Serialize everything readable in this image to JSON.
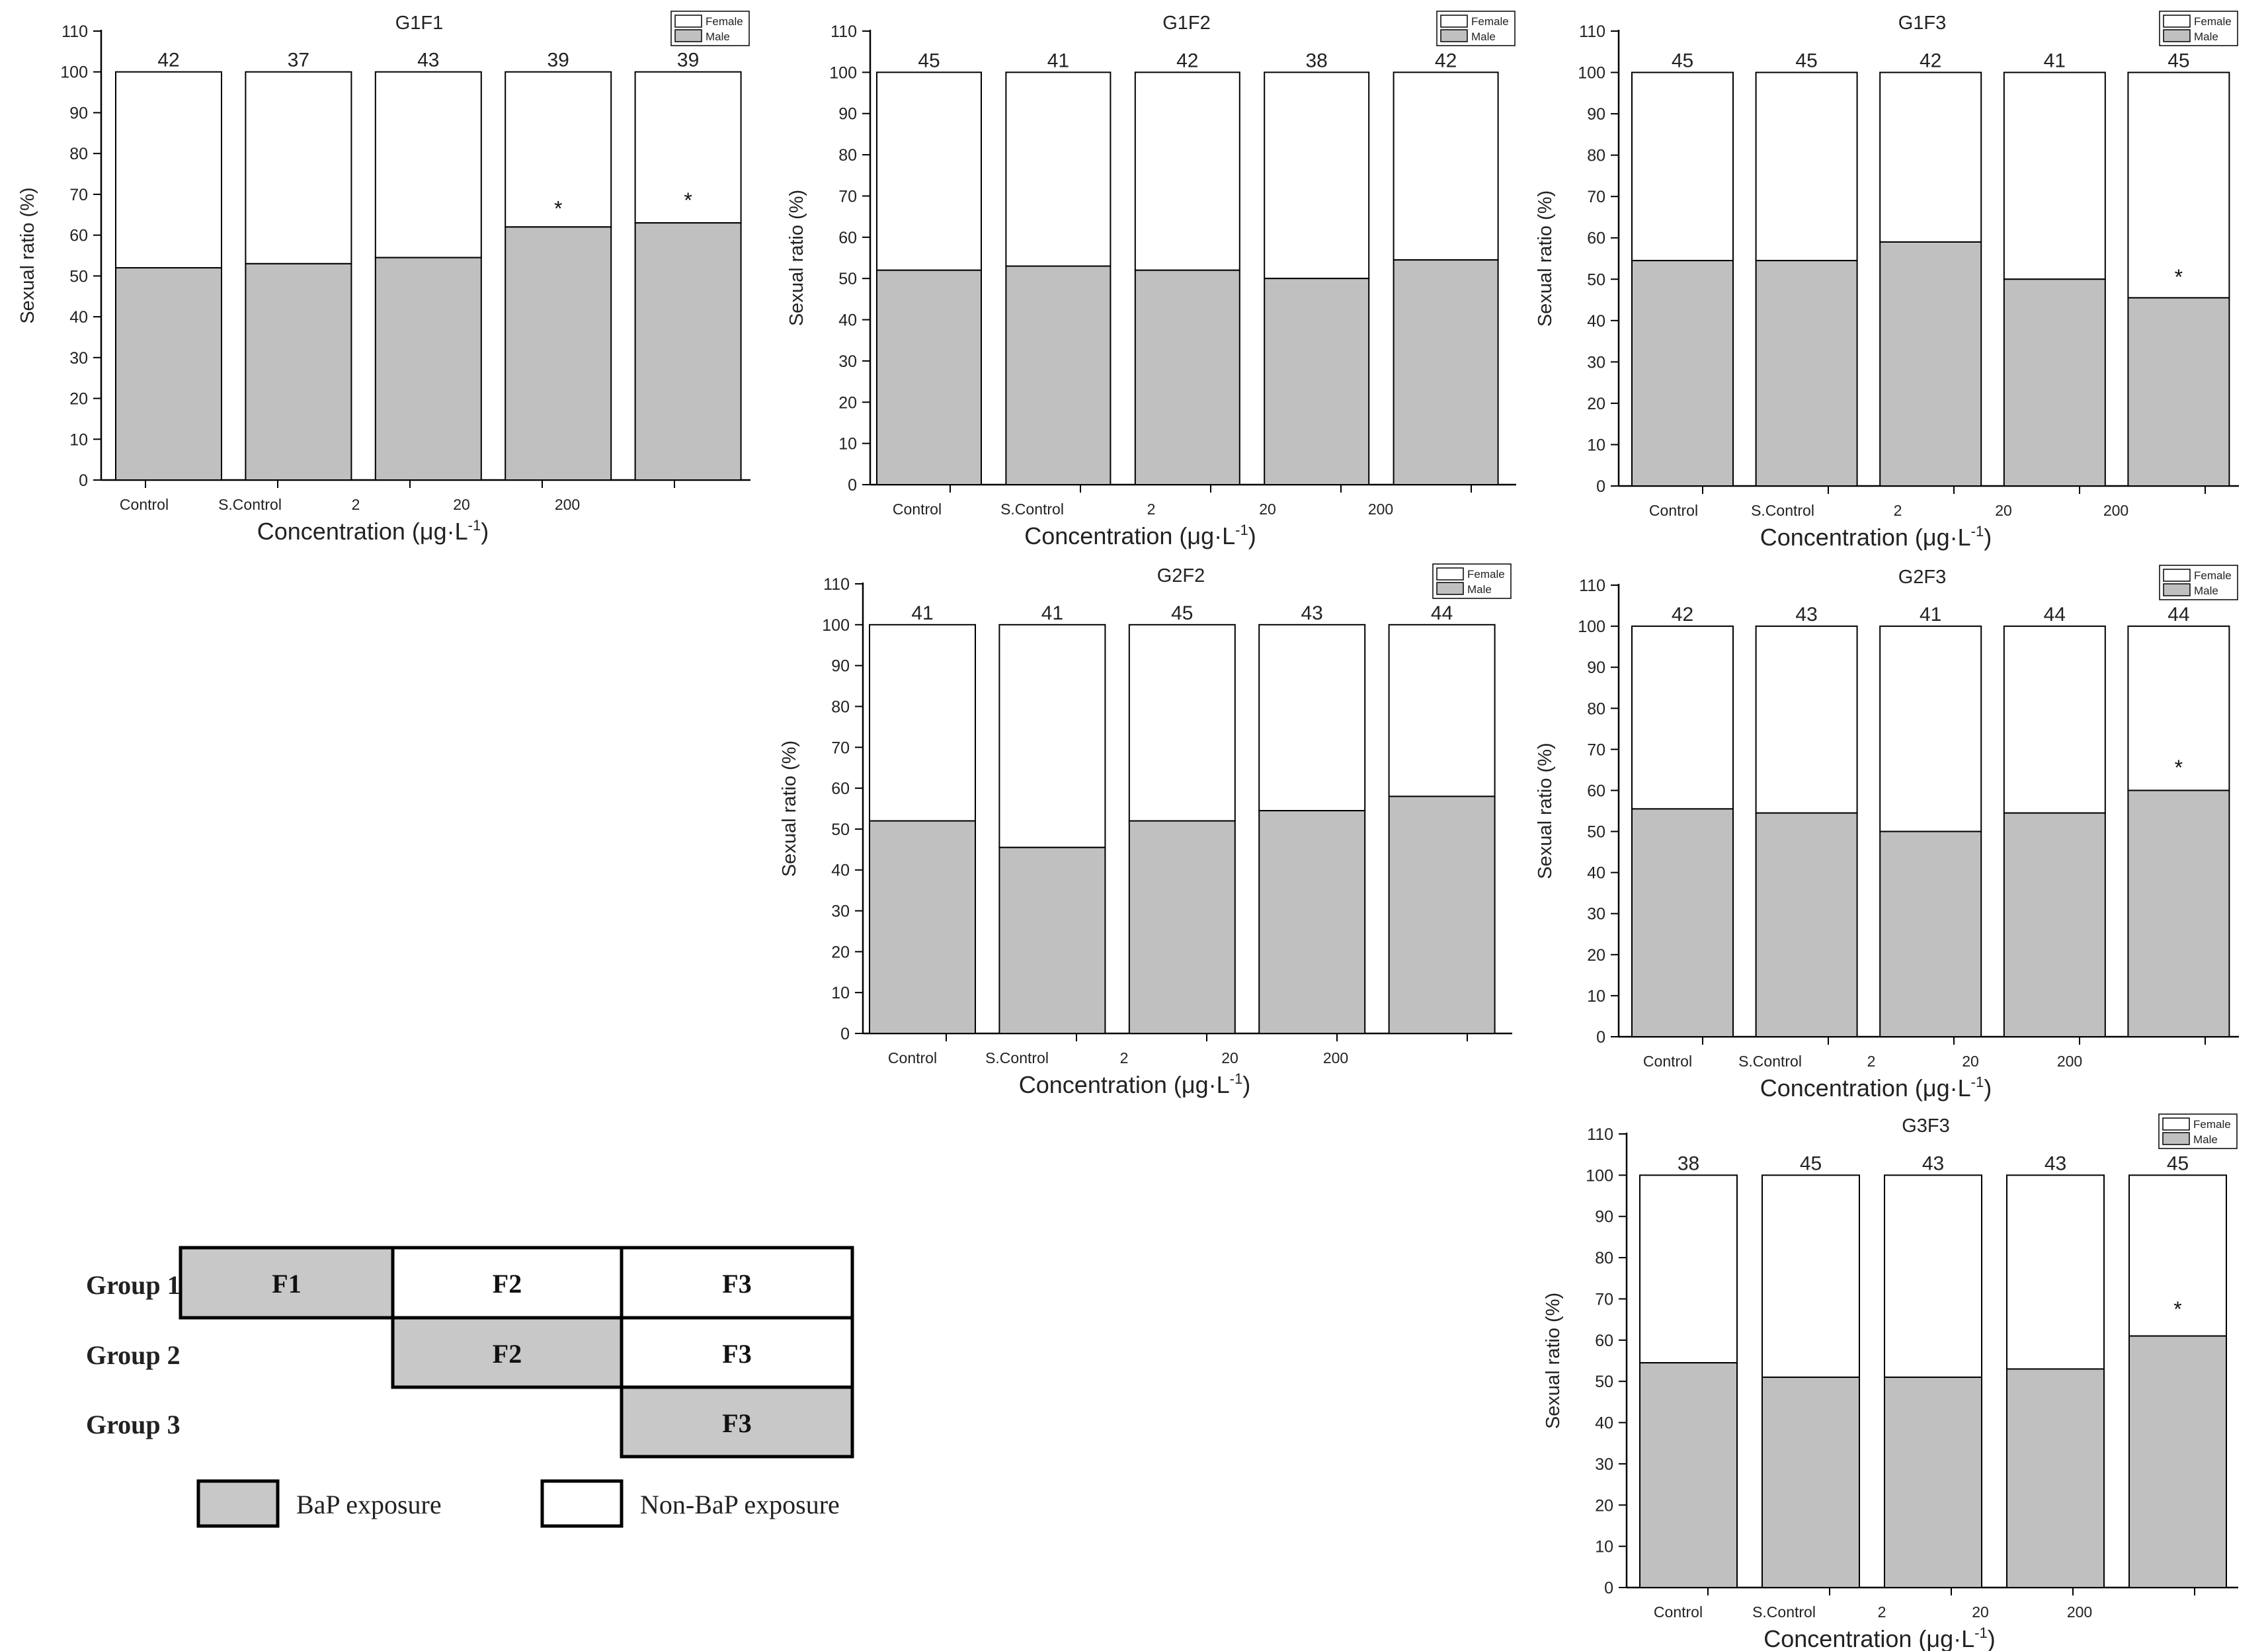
{
  "chart_data": [
    {
      "id": "G1F1",
      "type": "bar",
      "stacked": true,
      "title": "G1F1",
      "ylabel": "Sexual ratio (%)",
      "xlabel": "Concentration (μg·L⁻¹)",
      "xlabel_base": "Concentration (μg·L",
      "xlabel_sup": "-1",
      "xlabel_close": ")",
      "ylim": [
        0,
        110
      ],
      "yticks": [
        0,
        10,
        20,
        30,
        40,
        50,
        60,
        70,
        80,
        90,
        100,
        110
      ],
      "tick_labels": [
        "Control",
        "S.Control",
        "2",
        "20",
        "200"
      ],
      "legend": [
        "Female",
        "Male"
      ],
      "counts": [
        42,
        37,
        43,
        39,
        39
      ],
      "series": [
        {
          "name": "Male",
          "values": [
            52,
            53,
            54.5,
            62,
            63
          ],
          "color": "#c0c0c0"
        },
        {
          "name": "Female",
          "values": [
            48,
            47,
            45.5,
            38,
            37
          ],
          "color": "#ffffff"
        }
      ],
      "significant": [
        false,
        false,
        false,
        true,
        true
      ],
      "star_values": [
        null,
        null,
        null,
        67,
        69
      ]
    },
    {
      "id": "G1F2",
      "type": "bar",
      "stacked": true,
      "title": "G1F2",
      "ylabel": "Sexual ratio (%)",
      "xlabel": "Concentration (μg·L⁻¹)",
      "xlabel_base": "Concentration (μg·L",
      "xlabel_sup": "-1",
      "xlabel_close": ")",
      "ylim": [
        0,
        110
      ],
      "yticks": [
        0,
        10,
        20,
        30,
        40,
        50,
        60,
        70,
        80,
        90,
        100,
        110
      ],
      "tick_labels": [
        "Control",
        "S.Control",
        "2",
        "20",
        "200"
      ],
      "legend": [
        "Female",
        "Male"
      ],
      "counts": [
        45,
        41,
        42,
        38,
        42
      ],
      "series": [
        {
          "name": "Male",
          "values": [
            52,
            53,
            52,
            50,
            54.5
          ],
          "color": "#c0c0c0"
        },
        {
          "name": "Female",
          "values": [
            48,
            47,
            48,
            50,
            45.5
          ],
          "color": "#ffffff"
        }
      ],
      "significant": [
        false,
        false,
        false,
        false,
        false
      ],
      "star_values": [
        null,
        null,
        null,
        null,
        null
      ]
    },
    {
      "id": "G1F3",
      "type": "bar",
      "stacked": true,
      "title": "G1F3",
      "ylabel": "Sexual ratio (%)",
      "xlabel": "Concentration (μg·L⁻¹)",
      "xlabel_base": "Concentration (μg·L",
      "xlabel_sup": "-1",
      "xlabel_close": ")",
      "ylim": [
        0,
        110
      ],
      "yticks": [
        0,
        10,
        20,
        30,
        40,
        50,
        60,
        70,
        80,
        90,
        100,
        110
      ],
      "tick_labels": [
        "Control",
        "S.Control",
        "2",
        "20",
        "200"
      ],
      "legend": [
        "Female",
        "Male"
      ],
      "counts": [
        45,
        45,
        42,
        41,
        45
      ],
      "series": [
        {
          "name": "Male",
          "values": [
            54.5,
            54.5,
            59,
            50,
            45.5
          ],
          "color": "#c0c0c0"
        },
        {
          "name": "Female",
          "values": [
            45.5,
            45.5,
            41,
            50,
            54.5
          ],
          "color": "#ffffff"
        }
      ],
      "significant": [
        false,
        false,
        false,
        false,
        true
      ],
      "star_values": [
        null,
        null,
        null,
        null,
        51
      ]
    },
    {
      "id": "G2F2",
      "type": "bar",
      "stacked": true,
      "title": "G2F2",
      "ylabel": "Sexual ratio (%)",
      "xlabel": "Concentration (μg·L⁻¹)",
      "xlabel_base": "Concentration (μg·L",
      "xlabel_sup": "-1",
      "xlabel_close": ")",
      "ylim": [
        0,
        110
      ],
      "yticks": [
        0,
        10,
        20,
        30,
        40,
        50,
        60,
        70,
        80,
        90,
        100,
        110
      ],
      "tick_labels": [
        "Control",
        "S.Control",
        "2",
        "20",
        "200"
      ],
      "legend": [
        "Female",
        "Male"
      ],
      "counts": [
        41,
        41,
        45,
        43,
        44
      ],
      "series": [
        {
          "name": "Male",
          "values": [
            52,
            45.5,
            52,
            54.5,
            58
          ],
          "color": "#c0c0c0"
        },
        {
          "name": "Female",
          "values": [
            48,
            54.5,
            48,
            45.5,
            42
          ],
          "color": "#ffffff"
        }
      ],
      "significant": [
        false,
        false,
        false,
        false,
        false
      ],
      "star_values": [
        null,
        null,
        null,
        null,
        null
      ]
    },
    {
      "id": "G2F3",
      "type": "bar",
      "stacked": true,
      "title": "G2F3",
      "ylabel": "Sexual ratio (%)",
      "xlabel": "Concentration (μg·L⁻¹)",
      "xlabel_base": "Concentration (μg·L",
      "xlabel_sup": "-1",
      "xlabel_close": ")",
      "ylim": [
        0,
        110
      ],
      "yticks": [
        0,
        10,
        20,
        30,
        40,
        50,
        60,
        70,
        80,
        90,
        100,
        110
      ],
      "tick_labels": [
        "Control",
        "S.Control",
        "2",
        "20",
        "200"
      ],
      "legend": [
        "Female",
        "Male"
      ],
      "counts": [
        42,
        43,
        41,
        44,
        44
      ],
      "series": [
        {
          "name": "Male",
          "values": [
            55.5,
            54.5,
            50,
            54.5,
            60
          ],
          "color": "#c0c0c0"
        },
        {
          "name": "Female",
          "values": [
            44.5,
            45.5,
            50,
            45.5,
            40
          ],
          "color": "#ffffff"
        }
      ],
      "significant": [
        false,
        false,
        false,
        false,
        true
      ],
      "star_values": [
        null,
        null,
        null,
        null,
        66
      ]
    },
    {
      "id": "G3F3",
      "type": "bar",
      "stacked": true,
      "title": "G3F3",
      "ylabel": "Sexual ratio (%)",
      "xlabel": "Concentration (μg·L⁻¹)",
      "xlabel_base": "Concentration (μg·L",
      "xlabel_sup": "-1",
      "xlabel_close": ")",
      "ylim": [
        0,
        110
      ],
      "yticks": [
        0,
        10,
        20,
        30,
        40,
        50,
        60,
        70,
        80,
        90,
        100,
        110
      ],
      "tick_labels": [
        "Control",
        "S.Control",
        "2",
        "20",
        "200"
      ],
      "legend": [
        "Female",
        "Male"
      ],
      "counts": [
        38,
        45,
        43,
        43,
        45
      ],
      "series": [
        {
          "name": "Male",
          "values": [
            54.5,
            51,
            51,
            53,
            61
          ],
          "color": "#c0c0c0"
        },
        {
          "name": "Female",
          "values": [
            45.5,
            49,
            49,
            47,
            39
          ],
          "color": "#ffffff"
        }
      ],
      "significant": [
        false,
        false,
        false,
        false,
        true
      ],
      "star_values": [
        null,
        null,
        null,
        null,
        68
      ]
    }
  ],
  "exposure_design": {
    "groups": [
      {
        "label": "Group 1",
        "cells": [
          {
            "text": "F1",
            "exposed": true
          },
          {
            "text": "F2",
            "exposed": false
          },
          {
            "text": "F3",
            "exposed": false
          }
        ]
      },
      {
        "label": "Group 2",
        "cells": [
          {
            "text": "F2",
            "exposed": true
          },
          {
            "text": "F3",
            "exposed": false
          }
        ]
      },
      {
        "label": "Group 3",
        "cells": [
          {
            "text": "F3",
            "exposed": true
          }
        ]
      }
    ],
    "legend": [
      {
        "label": "BaP exposure",
        "color": "#c8c8c8"
      },
      {
        "label": "Non-BaP exposure",
        "color": "#ffffff"
      }
    ]
  },
  "colors": {
    "male": "#c0c0c0",
    "female": "#ffffff",
    "axis": "#000000",
    "bap": "#c8c8c8"
  }
}
